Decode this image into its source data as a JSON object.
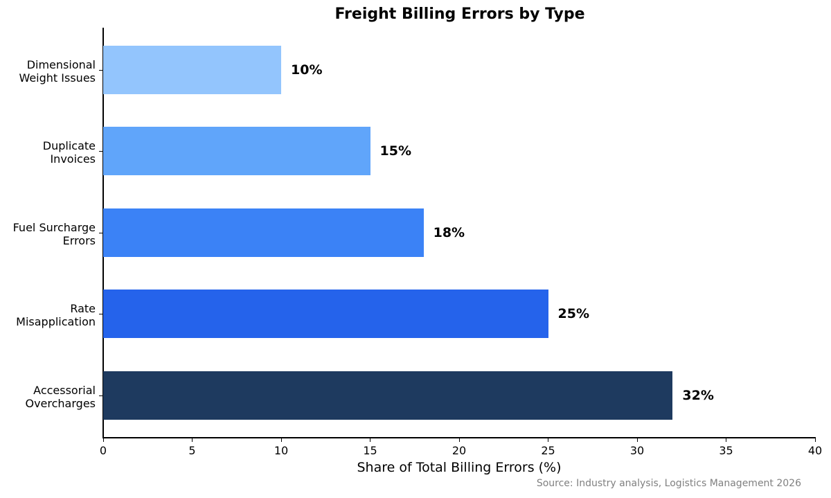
{
  "chart_data": {
    "type": "bar",
    "orientation": "horizontal",
    "title": "Freight Billing Errors by Type",
    "xlabel": "Share of Total Billing Errors (%)",
    "ylabel": "",
    "xlim": [
      0,
      40
    ],
    "xticks": [
      "0",
      "5",
      "10",
      "15",
      "20",
      "25",
      "30",
      "35",
      "40"
    ],
    "grid": false,
    "legend": null,
    "categories": [
      "Dimensional Weight Issues",
      "Duplicate Invoices",
      "Fuel Surcharge Errors",
      "Rate Misapplication",
      "Accessorial Overcharges"
    ],
    "category_lines": [
      [
        "Dimensional",
        "Weight Issues"
      ],
      [
        "Duplicate",
        "Invoices"
      ],
      [
        "Fuel Surcharge",
        "Errors"
      ],
      [
        "Rate",
        "Misapplication"
      ],
      [
        "Accessorial",
        "Overcharges"
      ]
    ],
    "values": [
      10,
      15,
      18,
      25,
      32
    ],
    "value_labels": [
      "10%",
      "15%",
      "18%",
      "25%",
      "32%"
    ],
    "colors": [
      "#93c5fd",
      "#60a5fa",
      "#3b82f6",
      "#2563eb",
      "#1e3a5f"
    ],
    "source": "Source: Industry analysis, Logistics Management 2026"
  }
}
